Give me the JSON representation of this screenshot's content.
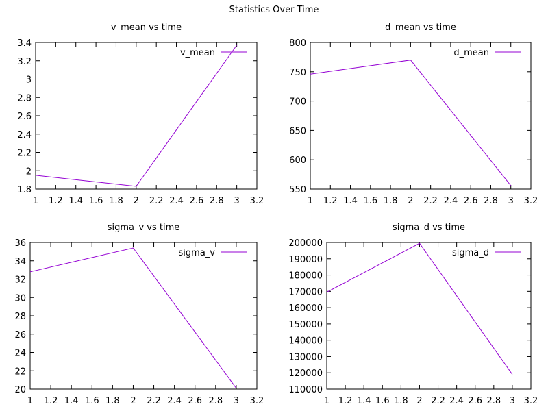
{
  "figure_title": "Statistics Over Time",
  "line_color": "#9400d3",
  "chart_data": [
    {
      "type": "line",
      "title": "v_mean vs time",
      "xlabel": "",
      "ylabel": "",
      "xlim": [
        1,
        3.2
      ],
      "ylim": [
        1.8,
        3.4
      ],
      "xticks": [
        "1",
        "1.2",
        "1.4",
        "1.6",
        "1.8",
        "2",
        "2.2",
        "2.4",
        "2.6",
        "2.8",
        "3",
        "3.2"
      ],
      "yticks": [
        "1.8",
        "2",
        "2.2",
        "2.4",
        "2.6",
        "2.8",
        "3",
        "3.2",
        "3.4"
      ],
      "legend_position": "top-right",
      "series": [
        {
          "name": "v_mean",
          "x": [
            1,
            2,
            3
          ],
          "y": [
            1.95,
            1.83,
            3.37
          ]
        }
      ]
    },
    {
      "type": "line",
      "title": "d_mean vs time",
      "xlabel": "",
      "ylabel": "",
      "xlim": [
        1,
        3.2
      ],
      "ylim": [
        550,
        800
      ],
      "xticks": [
        "1",
        "1.2",
        "1.4",
        "1.6",
        "1.8",
        "2",
        "2.2",
        "2.4",
        "2.6",
        "2.8",
        "3",
        "3.2"
      ],
      "yticks": [
        "550",
        "600",
        "650",
        "700",
        "750",
        "800"
      ],
      "legend_position": "top-right",
      "series": [
        {
          "name": "d_mean",
          "x": [
            1,
            2,
            3
          ],
          "y": [
            746,
            770,
            556
          ]
        }
      ]
    },
    {
      "type": "line",
      "title": "sigma_v vs time",
      "xlabel": "",
      "ylabel": "",
      "xlim": [
        1,
        3.2
      ],
      "ylim": [
        20,
        36
      ],
      "xticks": [
        "1",
        "1.2",
        "1.4",
        "1.6",
        "1.8",
        "2",
        "2.2",
        "2.4",
        "2.6",
        "2.8",
        "3",
        "3.2"
      ],
      "yticks": [
        "20",
        "22",
        "24",
        "26",
        "28",
        "30",
        "32",
        "34",
        "36"
      ],
      "legend_position": "top-right",
      "series": [
        {
          "name": "sigma_v",
          "x": [
            1,
            2,
            3
          ],
          "y": [
            32.8,
            35.4,
            20.1
          ]
        }
      ]
    },
    {
      "type": "line",
      "title": "sigma_d vs time",
      "xlabel": "",
      "ylabel": "",
      "xlim": [
        1,
        3.2
      ],
      "ylim": [
        110000,
        200000
      ],
      "xticks": [
        "1",
        "1.2",
        "1.4",
        "1.6",
        "1.8",
        "2",
        "2.2",
        "2.4",
        "2.6",
        "2.8",
        "3",
        "3.2"
      ],
      "yticks": [
        "110000",
        "120000",
        "130000",
        "140000",
        "150000",
        "160000",
        "170000",
        "180000",
        "190000",
        "200000"
      ],
      "legend_position": "top-right",
      "series": [
        {
          "name": "sigma_d",
          "x": [
            1,
            2,
            3
          ],
          "y": [
            169500,
            199500,
            119000
          ]
        }
      ]
    }
  ]
}
